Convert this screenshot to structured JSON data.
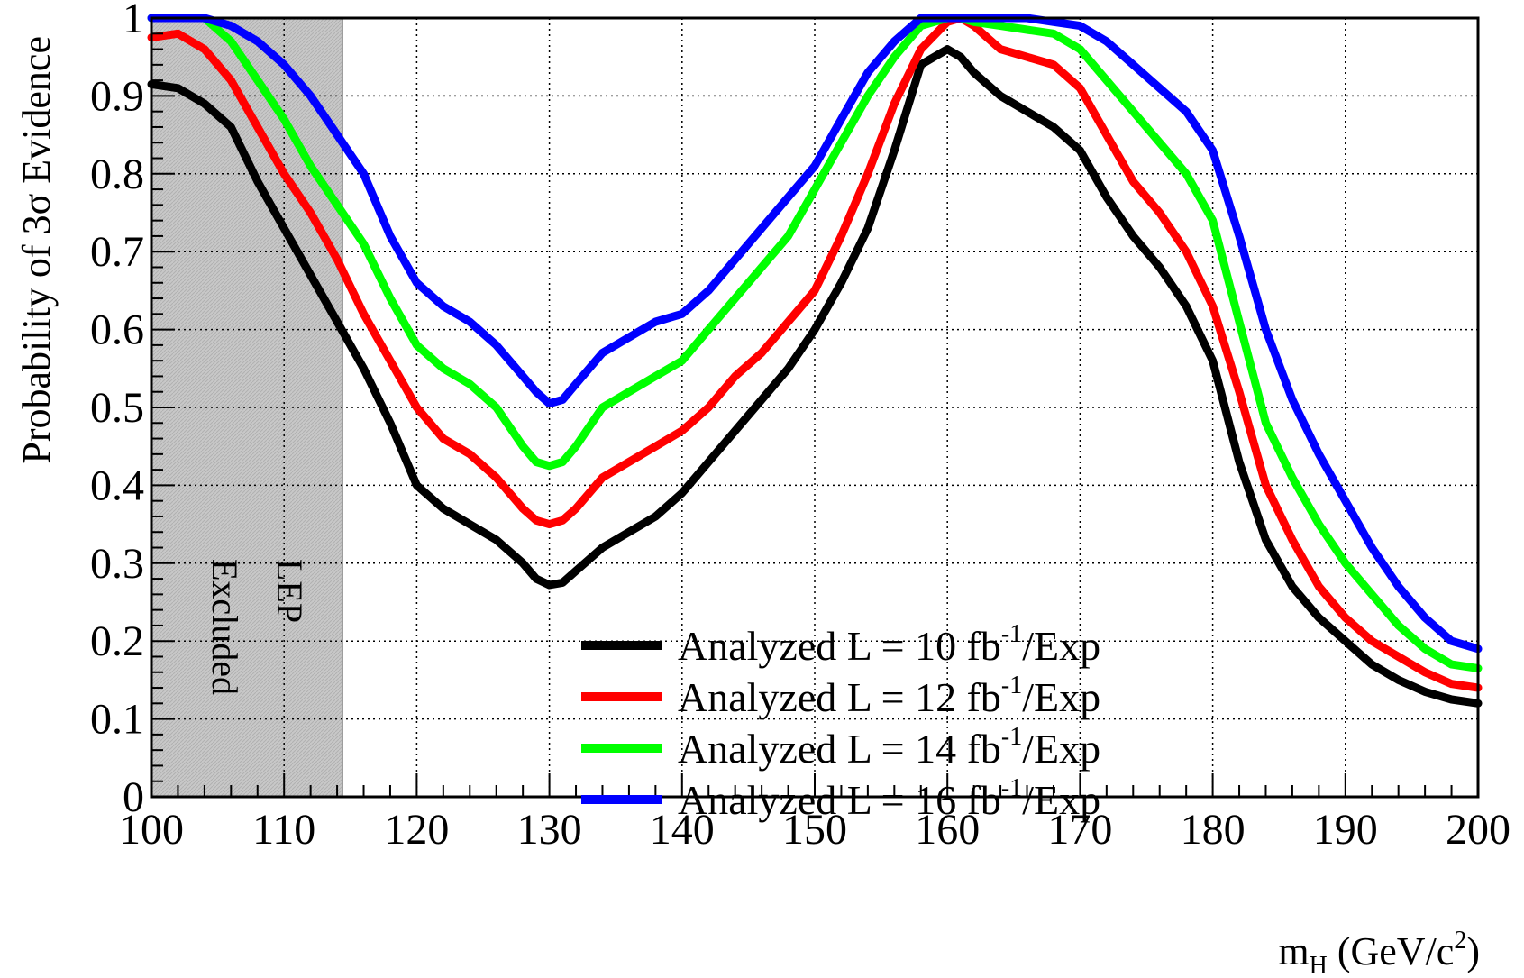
{
  "chart_data": {
    "type": "line",
    "title": "",
    "xlabel": "m",
    "xlabel_sub": "H",
    "xlabel_unit_open": " (GeV/c",
    "xlabel_unit_sup": "2",
    "xlabel_unit_close": ")",
    "ylabel": "Probability of 3σ Evidence",
    "xlim": [
      100,
      200
    ],
    "ylim": [
      0,
      1
    ],
    "x_ticks": [
      "100",
      "110",
      "120",
      "130",
      "140",
      "150",
      "160",
      "170",
      "180",
      "190",
      "200"
    ],
    "y_ticks": [
      "0",
      "0.1",
      "0.2",
      "0.3",
      "0.4",
      "0.5",
      "0.6",
      "0.7",
      "0.8",
      "0.9",
      "1"
    ],
    "grid": true,
    "legend_position": "bottom-center",
    "excluded_region": {
      "x_range": [
        100,
        114.4
      ],
      "label_line1": "LEP",
      "label_line2": "Excluded",
      "color": "#c8c8c8"
    },
    "x": [
      100,
      102,
      104,
      106,
      108,
      110,
      112,
      114,
      116,
      118,
      120,
      122,
      124,
      126,
      128,
      129,
      130,
      131,
      132,
      134,
      136,
      138,
      140,
      142,
      144,
      146,
      148,
      150,
      152,
      154,
      156,
      158,
      160,
      161,
      162,
      164,
      166,
      168,
      170,
      172,
      174,
      176,
      178,
      180,
      182,
      184,
      186,
      188,
      190,
      192,
      194,
      196,
      198,
      200
    ],
    "series": [
      {
        "name_prefix": "Analyzed L = 10 fb",
        "name_sup": "-1",
        "name_suffix": "/Exp",
        "color": "#000000",
        "values": [
          0.915,
          0.91,
          0.89,
          0.86,
          0.79,
          0.73,
          0.67,
          0.61,
          0.55,
          0.48,
          0.4,
          0.37,
          0.35,
          0.33,
          0.3,
          0.28,
          0.272,
          0.275,
          0.29,
          0.32,
          0.34,
          0.36,
          0.39,
          0.43,
          0.47,
          0.51,
          0.55,
          0.6,
          0.66,
          0.73,
          0.83,
          0.94,
          0.96,
          0.95,
          0.93,
          0.9,
          0.88,
          0.86,
          0.83,
          0.77,
          0.72,
          0.68,
          0.63,
          0.56,
          0.43,
          0.33,
          0.27,
          0.23,
          0.2,
          0.17,
          0.15,
          0.135,
          0.125,
          0.12
        ]
      },
      {
        "name_prefix": "Analyzed L = 12 fb",
        "name_sup": "-1",
        "name_suffix": "/Exp",
        "color": "#ff0000",
        "values": [
          0.975,
          0.98,
          0.96,
          0.92,
          0.86,
          0.8,
          0.75,
          0.69,
          0.62,
          0.56,
          0.5,
          0.46,
          0.44,
          0.41,
          0.37,
          0.355,
          0.35,
          0.355,
          0.37,
          0.41,
          0.43,
          0.45,
          0.47,
          0.5,
          0.54,
          0.57,
          0.61,
          0.65,
          0.72,
          0.8,
          0.89,
          0.96,
          0.995,
          1.0,
          0.99,
          0.96,
          0.95,
          0.94,
          0.91,
          0.85,
          0.79,
          0.75,
          0.7,
          0.63,
          0.52,
          0.4,
          0.33,
          0.27,
          0.23,
          0.2,
          0.18,
          0.16,
          0.145,
          0.14
        ]
      },
      {
        "name_prefix": "Analyzed L = 14 fb",
        "name_sup": "-1",
        "name_suffix": "/Exp",
        "color": "#00ff00",
        "values": [
          1.0,
          1.0,
          1.0,
          0.97,
          0.92,
          0.87,
          0.81,
          0.76,
          0.71,
          0.64,
          0.58,
          0.55,
          0.53,
          0.5,
          0.45,
          0.43,
          0.425,
          0.43,
          0.45,
          0.5,
          0.52,
          0.54,
          0.56,
          0.6,
          0.64,
          0.68,
          0.72,
          0.78,
          0.84,
          0.9,
          0.95,
          0.99,
          1.0,
          1.0,
          0.995,
          0.99,
          0.985,
          0.98,
          0.96,
          0.92,
          0.88,
          0.84,
          0.8,
          0.74,
          0.61,
          0.48,
          0.41,
          0.35,
          0.3,
          0.26,
          0.22,
          0.19,
          0.17,
          0.165
        ]
      },
      {
        "name_prefix": "Analyzed L = 16 fb",
        "name_sup": "-1",
        "name_suffix": "/Exp",
        "color": "#0000ff",
        "values": [
          1.0,
          1.0,
          1.0,
          0.99,
          0.97,
          0.94,
          0.9,
          0.85,
          0.8,
          0.72,
          0.66,
          0.63,
          0.61,
          0.58,
          0.54,
          0.52,
          0.505,
          0.51,
          0.53,
          0.57,
          0.59,
          0.61,
          0.62,
          0.65,
          0.69,
          0.73,
          0.77,
          0.81,
          0.87,
          0.93,
          0.97,
          1.0,
          1.0,
          1.0,
          1.0,
          1.0,
          1.0,
          0.995,
          0.99,
          0.97,
          0.94,
          0.91,
          0.88,
          0.83,
          0.72,
          0.6,
          0.51,
          0.44,
          0.38,
          0.32,
          0.27,
          0.23,
          0.2,
          0.19
        ]
      }
    ]
  }
}
